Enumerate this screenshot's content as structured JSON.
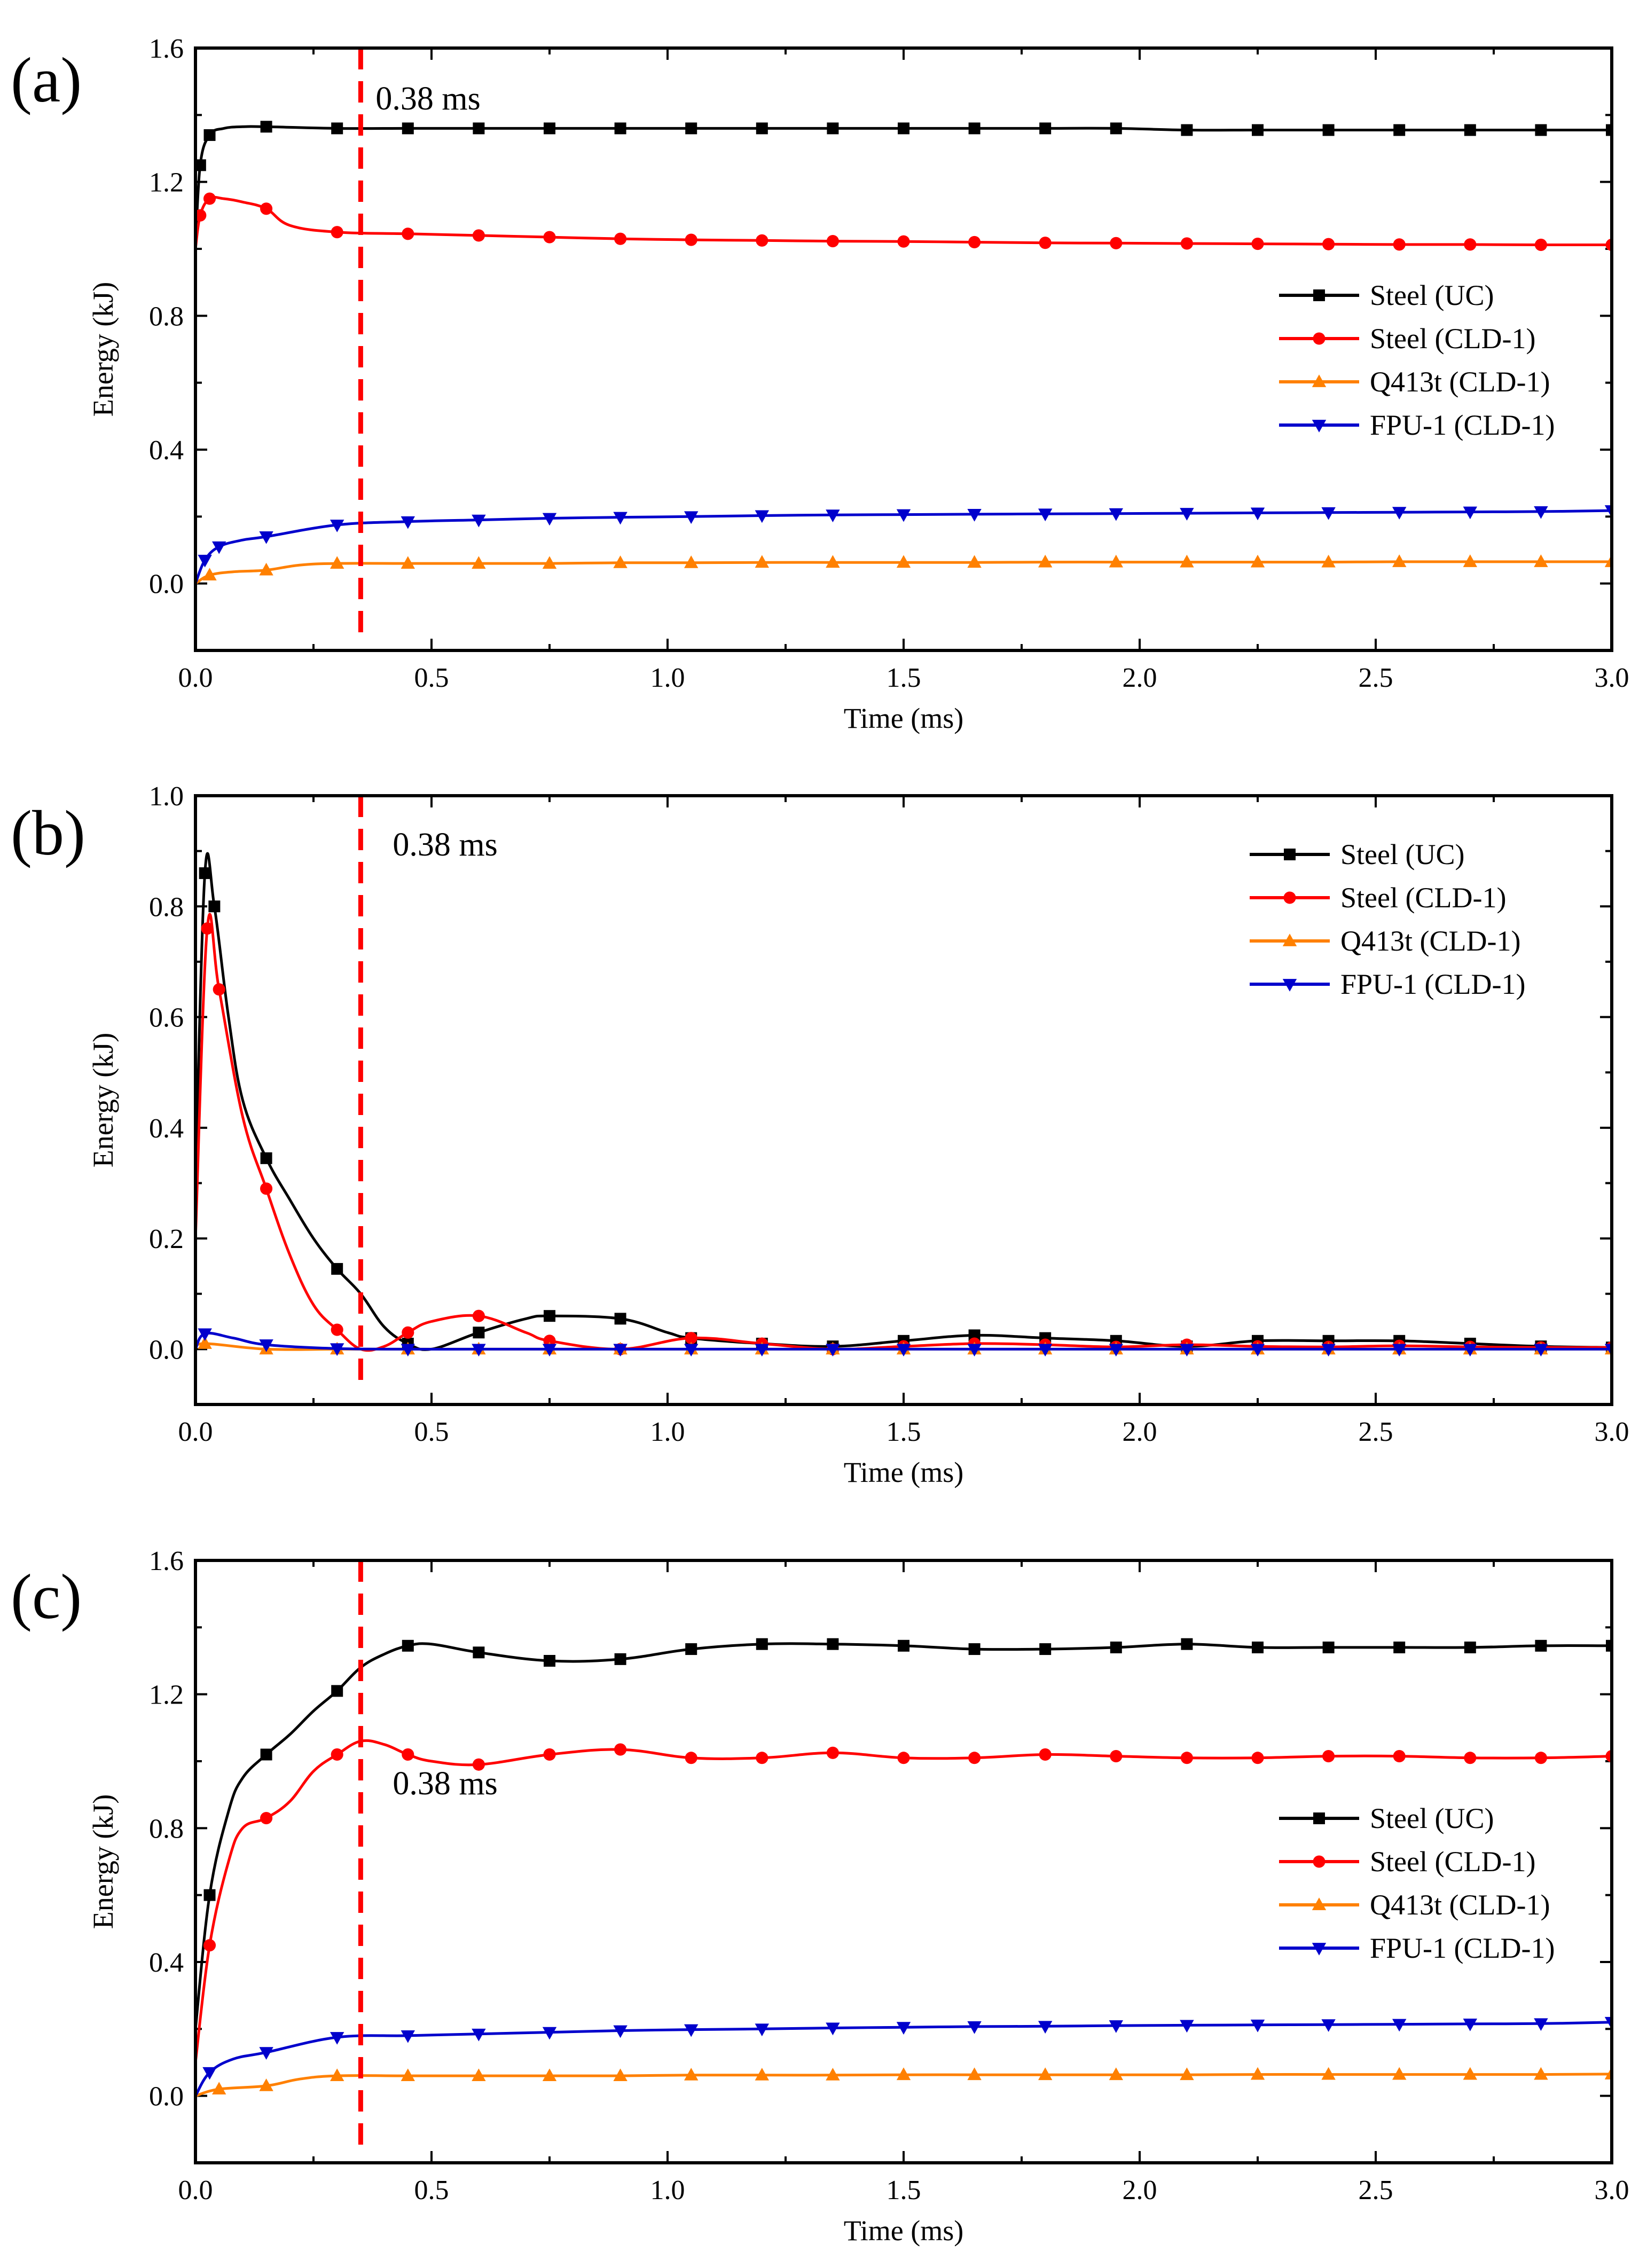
{
  "chart_data": [
    {
      "type": "line",
      "panel_label": "(a)",
      "xlabel": "Time (ms)",
      "ylabel": "Energy (kJ)",
      "xlim": [
        0,
        3.0
      ],
      "ylim": [
        -0.2,
        1.6
      ],
      "xticks": [
        "0.0",
        "0.5",
        "1.0",
        "1.5",
        "2.0",
        "2.5",
        "3.0"
      ],
      "yticks": [
        "0.0",
        "0.4",
        "0.8",
        "1.2",
        "1.6"
      ],
      "legend_position": "center-right",
      "annotation": {
        "text": "0.38 ms",
        "x": 0.35
      },
      "series": [
        {
          "name": "Steel (UC)",
          "color": "#000000",
          "marker": "square",
          "x": [
            0,
            0.01,
            0.03,
            0.06,
            0.1,
            0.15,
            0.3,
            0.45,
            0.6,
            0.75,
            0.9,
            1.05,
            1.2,
            1.35,
            1.5,
            1.65,
            1.8,
            1.95,
            2.1,
            2.25,
            2.4,
            2.55,
            2.7,
            2.85,
            3.0
          ],
          "y": [
            1.0,
            1.25,
            1.34,
            1.36,
            1.365,
            1.365,
            1.36,
            1.36,
            1.36,
            1.36,
            1.36,
            1.36,
            1.36,
            1.36,
            1.36,
            1.36,
            1.36,
            1.36,
            1.355,
            1.355,
            1.355,
            1.355,
            1.355,
            1.355,
            1.355
          ]
        },
        {
          "name": "Steel (CLD-1)",
          "color": "#ff0000",
          "marker": "circle",
          "x": [
            0,
            0.01,
            0.03,
            0.06,
            0.1,
            0.15,
            0.2,
            0.3,
            0.45,
            0.6,
            0.75,
            0.9,
            1.05,
            1.2,
            1.35,
            1.5,
            1.65,
            1.8,
            1.95,
            2.1,
            2.25,
            2.4,
            2.55,
            2.7,
            2.85,
            3.0
          ],
          "y": [
            1.0,
            1.1,
            1.15,
            1.15,
            1.14,
            1.12,
            1.07,
            1.05,
            1.045,
            1.04,
            1.035,
            1.03,
            1.027,
            1.025,
            1.023,
            1.022,
            1.02,
            1.018,
            1.017,
            1.016,
            1.015,
            1.014,
            1.013,
            1.013,
            1.012,
            1.012
          ]
        },
        {
          "name": "Q413t (CLD-1)",
          "color": "#ff8000",
          "marker": "triangle-up",
          "x": [
            0,
            0.03,
            0.08,
            0.15,
            0.22,
            0.3,
            0.45,
            0.6,
            0.75,
            0.9,
            1.05,
            1.2,
            1.35,
            1.5,
            1.65,
            1.8,
            1.95,
            2.1,
            2.25,
            2.4,
            2.55,
            2.7,
            2.85,
            3.0
          ],
          "y": [
            0,
            0.025,
            0.035,
            0.04,
            0.055,
            0.06,
            0.06,
            0.06,
            0.06,
            0.062,
            0.062,
            0.063,
            0.063,
            0.063,
            0.063,
            0.064,
            0.064,
            0.064,
            0.064,
            0.064,
            0.065,
            0.065,
            0.065,
            0.065
          ]
        },
        {
          "name": "FPU-1 (CLD-1)",
          "color": "#0000cc",
          "marker": "triangle-down",
          "x": [
            0,
            0.02,
            0.05,
            0.1,
            0.15,
            0.3,
            0.45,
            0.6,
            0.75,
            0.9,
            1.05,
            1.2,
            1.35,
            1.5,
            1.65,
            1.8,
            1.95,
            2.1,
            2.25,
            2.4,
            2.55,
            2.7,
            2.85,
            3.0
          ],
          "y": [
            0,
            0.07,
            0.11,
            0.13,
            0.14,
            0.175,
            0.185,
            0.19,
            0.195,
            0.198,
            0.2,
            0.203,
            0.205,
            0.206,
            0.207,
            0.208,
            0.209,
            0.21,
            0.211,
            0.212,
            0.213,
            0.214,
            0.215,
            0.218
          ]
        }
      ]
    },
    {
      "type": "line",
      "panel_label": "(b)",
      "xlabel": "Time (ms)",
      "ylabel": "Energy (kJ)",
      "xlim": [
        0,
        3.0
      ],
      "ylim": [
        -0.1,
        1.0
      ],
      "xticks": [
        "0.0",
        "0.5",
        "1.0",
        "1.5",
        "2.0",
        "2.5",
        "3.0"
      ],
      "yticks": [
        "0.0",
        "0.2",
        "0.4",
        "0.6",
        "0.8",
        "1.0"
      ],
      "legend_position": "top-right",
      "annotation": {
        "text": "0.38 ms",
        "x": 0.35
      },
      "series": [
        {
          "name": "Steel (UC)",
          "color": "#000000",
          "marker": "square",
          "x": [
            0,
            0.02,
            0.04,
            0.07,
            0.1,
            0.15,
            0.2,
            0.25,
            0.3,
            0.35,
            0.4,
            0.45,
            0.5,
            0.6,
            0.7,
            0.75,
            0.9,
            1.0,
            1.05,
            1.2,
            1.35,
            1.5,
            1.65,
            1.8,
            1.95,
            2.1,
            2.25,
            2.4,
            2.55,
            2.7,
            2.85,
            3.0
          ],
          "y": [
            0.3,
            0.86,
            0.8,
            0.6,
            0.45,
            0.345,
            0.27,
            0.2,
            0.145,
            0.1,
            0.04,
            0.01,
            0.0,
            0.03,
            0.055,
            0.06,
            0.055,
            0.03,
            0.02,
            0.01,
            0.005,
            0.015,
            0.025,
            0.02,
            0.015,
            0.005,
            0.015,
            0.015,
            0.015,
            0.01,
            0.005,
            0.003
          ]
        },
        {
          "name": "Steel (CLD-1)",
          "color": "#ff0000",
          "marker": "circle",
          "x": [
            0,
            0.025,
            0.05,
            0.1,
            0.15,
            0.2,
            0.25,
            0.3,
            0.35,
            0.4,
            0.45,
            0.5,
            0.6,
            0.7,
            0.75,
            0.9,
            1.05,
            1.2,
            1.35,
            1.5,
            1.65,
            1.8,
            1.95,
            2.1,
            2.25,
            2.4,
            2.55,
            2.7,
            2.85,
            3.0
          ],
          "y": [
            0.2,
            0.76,
            0.65,
            0.42,
            0.29,
            0.17,
            0.08,
            0.035,
            0.0,
            0.005,
            0.03,
            0.05,
            0.06,
            0.03,
            0.015,
            0.0,
            0.02,
            0.01,
            0.0,
            0.005,
            0.01,
            0.008,
            0.004,
            0.008,
            0.005,
            0.004,
            0.006,
            0.004,
            0.003,
            0.003
          ]
        },
        {
          "name": "Q413t (CLD-1)",
          "color": "#ff8000",
          "marker": "triangle-up",
          "x": [
            0,
            0.02,
            0.15,
            0.3,
            0.45,
            0.6,
            0.75,
            0.9,
            1.05,
            1.2,
            1.35,
            1.5,
            1.65,
            1.8,
            1.95,
            2.1,
            2.25,
            2.4,
            2.55,
            2.7,
            2.85,
            3.0
          ],
          "y": [
            0,
            0.01,
            0.0,
            0.0,
            0.0,
            0.0,
            0.0,
            0.0,
            0.0,
            0.0,
            0.0,
            0.0,
            0.0,
            0.0,
            0.0,
            0.0,
            0.0,
            0.0,
            0.0,
            0.0,
            0.0,
            0.0
          ]
        },
        {
          "name": "FPU-1 (CLD-1)",
          "color": "#0000cc",
          "marker": "triangle-down",
          "x": [
            0,
            0.02,
            0.08,
            0.15,
            0.3,
            0.45,
            0.6,
            0.75,
            0.9,
            1.05,
            1.2,
            1.35,
            1.5,
            1.65,
            1.8,
            1.95,
            2.1,
            2.25,
            2.4,
            2.55,
            2.7,
            2.85,
            3.0
          ],
          "y": [
            0,
            0.028,
            0.02,
            0.008,
            0.001,
            0.0,
            0.0,
            0.0,
            0.0,
            0.0,
            0.0,
            0.0,
            0.0,
            0.0,
            0.0,
            0.0,
            0.0,
            0.0,
            0.0,
            0.0,
            0.0,
            0.0,
            0.0
          ]
        }
      ]
    },
    {
      "type": "line",
      "panel_label": "(c)",
      "xlabel": "Time (ms)",
      "ylabel": "Energy (kJ)",
      "xlim": [
        0,
        3.0
      ],
      "ylim": [
        -0.2,
        1.6
      ],
      "xticks": [
        "0.0",
        "0.5",
        "1.0",
        "1.5",
        "2.0",
        "2.5",
        "3.0"
      ],
      "yticks": [
        "0.0",
        "0.4",
        "0.8",
        "1.2",
        "1.6"
      ],
      "legend_position": "center-right",
      "annotation": {
        "text": "0.38 ms",
        "x": 0.35
      },
      "series": [
        {
          "name": "Steel (UC)",
          "color": "#000000",
          "marker": "square",
          "x": [
            0,
            0.03,
            0.07,
            0.1,
            0.15,
            0.2,
            0.25,
            0.3,
            0.35,
            0.4,
            0.45,
            0.5,
            0.6,
            0.75,
            0.9,
            1.05,
            1.2,
            1.35,
            1.5,
            1.65,
            1.8,
            1.95,
            2.1,
            2.25,
            2.4,
            2.55,
            2.7,
            2.85,
            3.0
          ],
          "y": [
            0.2,
            0.6,
            0.85,
            0.95,
            1.02,
            1.08,
            1.15,
            1.21,
            1.28,
            1.32,
            1.345,
            1.35,
            1.325,
            1.3,
            1.305,
            1.335,
            1.35,
            1.35,
            1.345,
            1.335,
            1.335,
            1.34,
            1.35,
            1.34,
            1.34,
            1.34,
            1.34,
            1.345,
            1.345
          ]
        },
        {
          "name": "Steel (CLD-1)",
          "color": "#ff0000",
          "marker": "circle",
          "x": [
            0,
            0.03,
            0.07,
            0.1,
            0.15,
            0.2,
            0.25,
            0.3,
            0.35,
            0.4,
            0.45,
            0.5,
            0.6,
            0.75,
            0.9,
            1.05,
            1.2,
            1.35,
            1.5,
            1.65,
            1.8,
            1.95,
            2.1,
            2.25,
            2.4,
            2.55,
            2.7,
            2.85,
            3.0
          ],
          "y": [
            0.1,
            0.45,
            0.7,
            0.8,
            0.83,
            0.88,
            0.97,
            1.02,
            1.06,
            1.05,
            1.02,
            1.0,
            0.99,
            1.02,
            1.035,
            1.01,
            1.01,
            1.025,
            1.01,
            1.01,
            1.02,
            1.015,
            1.01,
            1.01,
            1.015,
            1.015,
            1.01,
            1.01,
            1.015
          ]
        },
        {
          "name": "Q413t (CLD-1)",
          "color": "#ff8000",
          "marker": "triangle-up",
          "x": [
            0,
            0.05,
            0.15,
            0.22,
            0.3,
            0.45,
            0.6,
            0.75,
            0.9,
            1.05,
            1.2,
            1.35,
            1.5,
            1.65,
            1.8,
            1.95,
            2.1,
            2.25,
            2.4,
            2.55,
            2.7,
            2.85,
            3.0
          ],
          "y": [
            0,
            0.02,
            0.03,
            0.05,
            0.06,
            0.06,
            0.06,
            0.06,
            0.06,
            0.062,
            0.062,
            0.062,
            0.063,
            0.063,
            0.063,
            0.063,
            0.063,
            0.064,
            0.064,
            0.064,
            0.064,
            0.064,
            0.065
          ]
        },
        {
          "name": "FPU-1 (CLD-1)",
          "color": "#0000cc",
          "marker": "triangle-down",
          "x": [
            0,
            0.03,
            0.08,
            0.15,
            0.3,
            0.45,
            0.6,
            0.75,
            0.9,
            1.05,
            1.2,
            1.35,
            1.5,
            1.65,
            1.8,
            1.95,
            2.1,
            2.25,
            2.4,
            2.55,
            2.7,
            2.85,
            3.0
          ],
          "y": [
            0,
            0.07,
            0.11,
            0.13,
            0.175,
            0.18,
            0.185,
            0.19,
            0.195,
            0.198,
            0.2,
            0.203,
            0.205,
            0.207,
            0.208,
            0.21,
            0.211,
            0.212,
            0.213,
            0.214,
            0.215,
            0.216,
            0.22
          ]
        }
      ]
    }
  ]
}
